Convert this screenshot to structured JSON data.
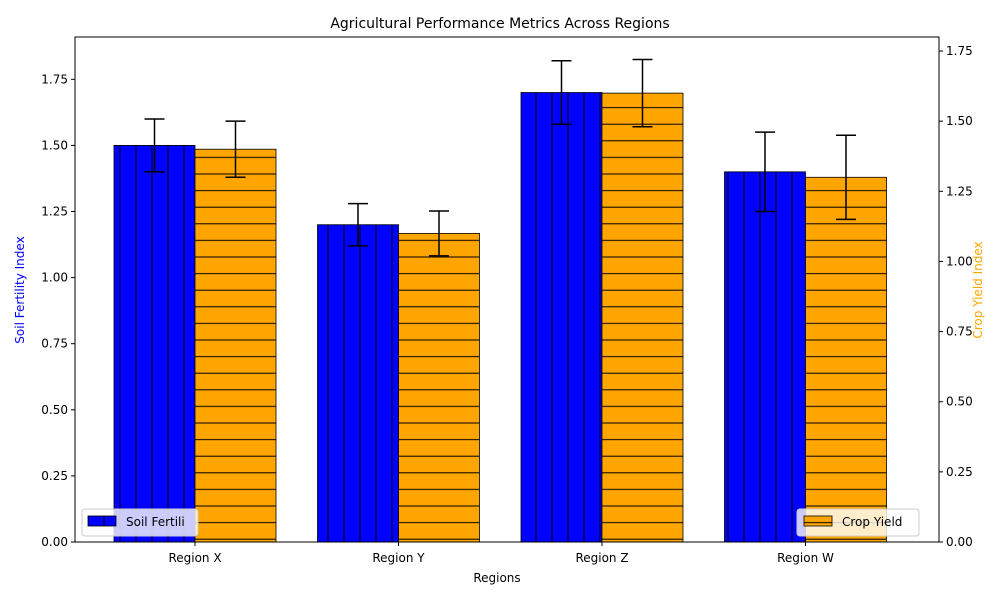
{
  "chart_data": {
    "type": "bar",
    "title": "Agricultural Performance Metrics Across Regions",
    "xlabel": "Regions",
    "categories": [
      "Region X",
      "Region Y",
      "Region Z",
      "Region W"
    ],
    "left_axis": {
      "label": "Soil Fertility Index",
      "color": "#0000ff",
      "ylim": [
        0,
        1.91
      ],
      "ticks": [
        "0.00",
        "0.25",
        "0.50",
        "0.75",
        "1.00",
        "1.25",
        "1.50",
        "1.75"
      ]
    },
    "right_axis": {
      "label": "Crop Yield Index",
      "color": "#ffa500",
      "ylim": [
        0,
        1.8
      ],
      "ticks": [
        "0.00",
        "0.25",
        "0.50",
        "0.75",
        "1.00",
        "1.25",
        "1.50",
        "1.75"
      ]
    },
    "series": [
      {
        "name": "Soil Fertility",
        "axis": "left",
        "color": "#0000ff",
        "hatch": "vertical",
        "values": [
          1.5,
          1.2,
          1.7,
          1.4
        ],
        "errors": [
          0.1,
          0.08,
          0.12,
          0.15
        ]
      },
      {
        "name": "Crop Yield",
        "axis": "right",
        "color": "#ffa500",
        "hatch": "horizontal",
        "values": [
          1.4,
          1.1,
          1.6,
          1.3
        ],
        "errors": [
          0.1,
          0.08,
          0.12,
          0.15
        ]
      }
    ],
    "legends": [
      {
        "placement": "lower-left",
        "label": "Soil Fertili",
        "series": 0
      },
      {
        "placement": "lower-right",
        "label": "Crop Yield",
        "series": 1
      }
    ],
    "grid": false
  }
}
